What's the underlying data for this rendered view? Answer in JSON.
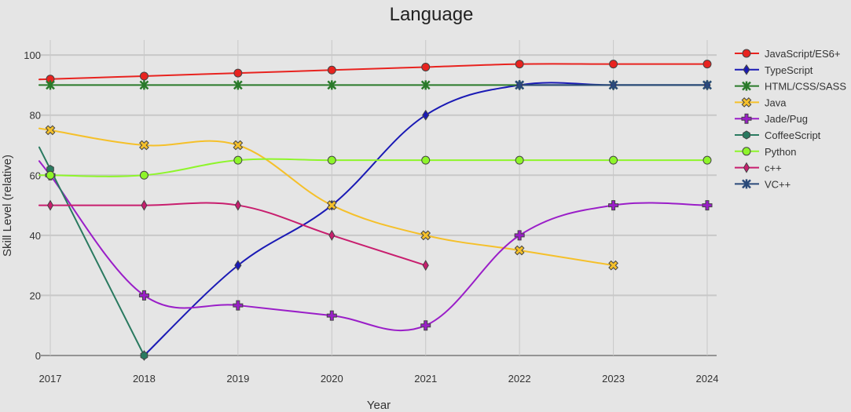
{
  "chart_data": {
    "type": "line",
    "title": "Language",
    "xlabel": "Year",
    "ylabel": "Skill Level (relative)",
    "x": [
      2017,
      2018,
      2019,
      2020,
      2021,
      2022,
      2023,
      2024
    ],
    "xlim": [
      2017,
      2024
    ],
    "ylim": [
      0,
      105
    ],
    "yticks": [
      0,
      20,
      40,
      60,
      80,
      100
    ],
    "grid": true,
    "legend": "right",
    "series": [
      {
        "name": "JavaScript/ES6+",
        "color": "#e8231f",
        "marker": "circle",
        "values": [
          92,
          93,
          94,
          95,
          96,
          97,
          97,
          97
        ]
      },
      {
        "name": "TypeScript",
        "color": "#1a1ab5",
        "marker": "diamond",
        "values": [
          null,
          0,
          30,
          50,
          80,
          90,
          90,
          90
        ]
      },
      {
        "name": "HTML/CSS/SASS",
        "color": "#2a7a2a",
        "marker": "star",
        "values": [
          90,
          90,
          90,
          90,
          90,
          90,
          90,
          90
        ]
      },
      {
        "name": "Java",
        "color": "#f5c02a",
        "marker": "x-square",
        "values": [
          75,
          70,
          70,
          50,
          40,
          35,
          30,
          null
        ]
      },
      {
        "name": "Jade/Pug",
        "color": "#9a1ec8",
        "marker": "cross",
        "values": [
          60,
          20,
          16.7,
          13.3,
          10,
          40,
          50,
          50
        ]
      },
      {
        "name": "CoffeeScript",
        "color": "#2a7a60",
        "marker": "hexagon",
        "values": [
          62,
          0,
          null,
          null,
          null,
          null,
          null,
          null
        ]
      },
      {
        "name": "Python",
        "color": "#8ef52a",
        "marker": "circle",
        "values": [
          60,
          60,
          65,
          65,
          65,
          65,
          65,
          65
        ]
      },
      {
        "name": "c++",
        "color": "#c81e6e",
        "marker": "diamond-thin",
        "values": [
          50,
          50,
          50,
          40,
          30,
          null,
          null,
          null
        ]
      },
      {
        "name": "VC++",
        "color": "#2a4a7a",
        "marker": "star",
        "values": [
          null,
          null,
          null,
          null,
          null,
          90,
          90,
          90
        ]
      }
    ]
  }
}
